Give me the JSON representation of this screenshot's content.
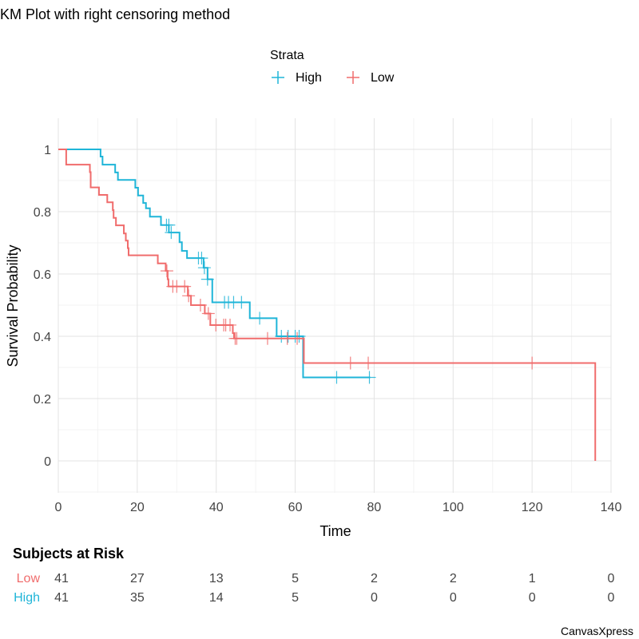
{
  "chart_data": {
    "type": "line",
    "subtype": "kaplan-meier-step",
    "title": "KM Plot with right censoring method",
    "xlabel": "Time",
    "ylabel": "Survival Probability",
    "xlim": [
      0,
      140
    ],
    "ylim": [
      -0.1,
      1.1
    ],
    "xticks": [
      0,
      20,
      40,
      60,
      80,
      100,
      120,
      140
    ],
    "yticks": [
      0,
      0.2,
      0.4,
      0.6,
      0.8,
      1
    ],
    "ytick_labels": [
      "0",
      "0.2",
      "0.4",
      "0.6",
      "0.8",
      "1"
    ],
    "grid": true,
    "legend": {
      "title": "Strata",
      "position": "top-center"
    },
    "series": [
      {
        "name": "High",
        "color": "#1FB5D8",
        "steps": [
          [
            0,
            1.0
          ],
          [
            10.7,
            0.977
          ],
          [
            11.2,
            0.951
          ],
          [
            14.4,
            0.926
          ],
          [
            15.1,
            0.902
          ],
          [
            19.5,
            0.877
          ],
          [
            20.2,
            0.852
          ],
          [
            21.5,
            0.828
          ],
          [
            22.2,
            0.811
          ],
          [
            23.2,
            0.784
          ],
          [
            26.0,
            0.757
          ],
          [
            28.0,
            0.733
          ],
          [
            30.7,
            0.702
          ],
          [
            31.3,
            0.674
          ],
          [
            32.6,
            0.651
          ],
          [
            36.8,
            0.62
          ],
          [
            37.8,
            0.583
          ],
          [
            39.0,
            0.509
          ],
          [
            48.5,
            0.458
          ],
          [
            55.3,
            0.4
          ],
          [
            62.0,
            0.268
          ],
          [
            79.0,
            0.268
          ]
        ],
        "censored": [
          [
            27.4,
            0.757
          ],
          [
            28.0,
            0.757
          ],
          [
            28.6,
            0.733
          ],
          [
            35.5,
            0.651
          ],
          [
            36.3,
            0.651
          ],
          [
            37.0,
            0.62
          ],
          [
            37.8,
            0.583
          ],
          [
            42.1,
            0.509
          ],
          [
            43.1,
            0.509
          ],
          [
            44.4,
            0.509
          ],
          [
            46.4,
            0.509
          ],
          [
            51.0,
            0.458
          ],
          [
            56.5,
            0.4
          ],
          [
            58.2,
            0.4
          ],
          [
            60.0,
            0.4
          ],
          [
            61.0,
            0.4
          ],
          [
            70.5,
            0.268
          ],
          [
            78.8,
            0.268
          ]
        ]
      },
      {
        "name": "Low",
        "color": "#F06C6C",
        "steps": [
          [
            0,
            1.0
          ],
          [
            2.0,
            0.951
          ],
          [
            8.0,
            0.927
          ],
          [
            8.2,
            0.878
          ],
          [
            10.3,
            0.854
          ],
          [
            12.4,
            0.83
          ],
          [
            13.8,
            0.805
          ],
          [
            14.0,
            0.78
          ],
          [
            14.6,
            0.756
          ],
          [
            16.6,
            0.73
          ],
          [
            17.1,
            0.707
          ],
          [
            17.6,
            0.683
          ],
          [
            17.8,
            0.66
          ],
          [
            25.2,
            0.634
          ],
          [
            27.2,
            0.61
          ],
          [
            27.7,
            0.583
          ],
          [
            27.9,
            0.56
          ],
          [
            32.8,
            0.53
          ],
          [
            33.6,
            0.5
          ],
          [
            37.1,
            0.473
          ],
          [
            38.5,
            0.436
          ],
          [
            44.2,
            0.41
          ],
          [
            44.5,
            0.393
          ],
          [
            62.2,
            0.314
          ],
          [
            136.0,
            0.314
          ],
          [
            136.0,
            0.0
          ]
        ],
        "censored": [
          [
            27.5,
            0.61
          ],
          [
            29.0,
            0.56
          ],
          [
            30.0,
            0.56
          ],
          [
            32.0,
            0.56
          ],
          [
            33.0,
            0.53
          ],
          [
            36.0,
            0.5
          ],
          [
            38.0,
            0.473
          ],
          [
            39.9,
            0.436
          ],
          [
            41.9,
            0.436
          ],
          [
            42.4,
            0.436
          ],
          [
            43.5,
            0.436
          ],
          [
            44.8,
            0.393
          ],
          [
            45.2,
            0.393
          ],
          [
            53.0,
            0.393
          ],
          [
            58.0,
            0.393
          ],
          [
            60.5,
            0.393
          ],
          [
            74.0,
            0.314
          ],
          [
            78.5,
            0.314
          ],
          [
            120.0,
            0.314
          ]
        ]
      }
    ],
    "risk_table": {
      "title": "Subjects at Risk",
      "times": [
        0,
        20,
        40,
        60,
        80,
        100,
        120,
        140
      ],
      "rows": [
        {
          "name": "Low",
          "color": "#F06C6C",
          "values": [
            "41",
            "27",
            "13",
            "5",
            "2",
            "2",
            "1",
            "0"
          ]
        },
        {
          "name": "High",
          "color": "#1FB5D8",
          "values": [
            "41",
            "35",
            "14",
            "5",
            "0",
            "0",
            "0",
            "0"
          ]
        }
      ]
    }
  },
  "credit": "CanvasXpress"
}
